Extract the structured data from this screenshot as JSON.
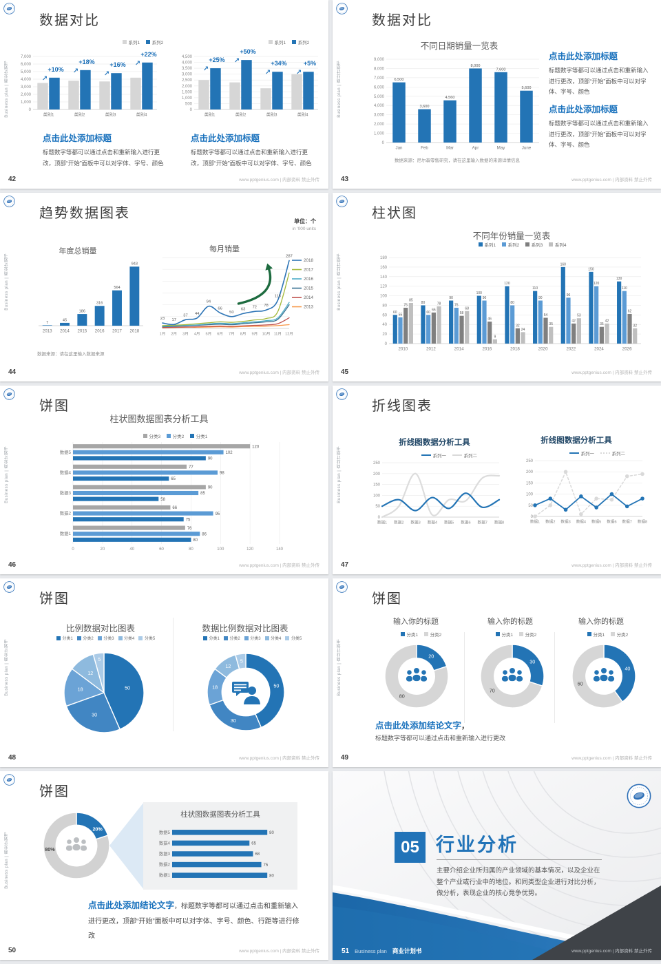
{
  "common": {
    "vertical": "Business plan | 商业计划书",
    "footer": "www.pptgenius.com | 内部资料 禁止外传",
    "click_title": "点击此处添加标题",
    "click_body": "标题数字等都可以通过点击和重新输入进行更改，顶部“开始”面板中可以对字体、字号、颜色"
  },
  "colors": {
    "primary_blue": "#2374b5",
    "light_blue": "#5b9bd5",
    "gray_bar": "#d6d6d6",
    "dark_gray": "#7f7f7f",
    "accent_green_arrow": "#1d6b3f"
  },
  "slides": {
    "s42": {
      "num": "42",
      "title": "数据对比"
    },
    "s43": {
      "num": "43",
      "title": "数据对比",
      "chart_title": "不同日期销量一览表",
      "note": "数据来源：尼尔森零售研究，请在这里输入数据的来源详情信息"
    },
    "s44": {
      "num": "44",
      "title": "趋势数据图表",
      "unit_cn": "单位：个",
      "unit_en": "in '000 units",
      "chart_title_left": "年度总销量",
      "chart_title_right": "每月销量",
      "note": "数据来源：请在这里输入数据来源"
    },
    "s45": {
      "num": "45",
      "title": "柱状图",
      "chart_title": "不同年份销量一览表"
    },
    "s46": {
      "num": "46",
      "title": "饼图",
      "chart_title": "柱状图数据图表分析工具"
    },
    "s47": {
      "num": "47",
      "title": "折线图表",
      "chart_title": "折线图数据分析工具"
    },
    "s48": {
      "num": "48",
      "title": "饼图",
      "chart_title_left": "比例数据对比图表",
      "chart_title_right": "数据比例数据对比图表"
    },
    "s49": {
      "num": "49",
      "title": "饼图",
      "chart_title": "输入你的标题",
      "conclusion_title": "点击此处添加结论文字",
      "conclusion_sep": "，",
      "conclusion_body": "标题数字等都可以通过点击和重新输入进行更改"
    },
    "s50": {
      "num": "50",
      "title": "饼图",
      "panel_title": "柱状图数据图表分析工具",
      "conclusion_title": "点击此处添加结论文字",
      "conclusion_body": "，标题数字等都可以通过点击和重新输入进行更改，顶部“开始”面板中可以对字体、字号、颜色、行距等进行修改"
    },
    "s51": {
      "num": "51",
      "section_no": "05",
      "section_title": "行业分析",
      "body": "主要介绍企业所归属的产业领域的基本情况，以及企业在整个产业或行业中的地位。和同类型企业进行对比分析，做分析，表现企业的核心竞争优势。",
      "footer_brand": "Business plan",
      "footer_doc": "商业计划书"
    }
  },
  "charts": {
    "c42a": {
      "type": "colbars",
      "yMax": 7000,
      "yStep": 1000,
      "yLabels": true,
      "yFmt": true,
      "categories": [
        "类别1",
        "类别2",
        "类别3",
        "类别4"
      ],
      "series": [
        {
          "name": "系列1",
          "color": "#d6d6d6",
          "values": [
            3500,
            3800,
            3700,
            4200
          ]
        },
        {
          "name": "系列2",
          "color": "#2374b5",
          "values": [
            4200,
            5200,
            4800,
            6200
          ]
        }
      ],
      "percents": [
        "+10%",
        "+18%",
        "+16%",
        "+22%"
      ],
      "legend": [
        {
          "label": "系列1",
          "color": "#d6d6d6"
        },
        {
          "label": "系列2",
          "color": "#2374b5"
        }
      ]
    },
    "c42b": {
      "type": "colbars",
      "yMax": 4500,
      "yStep": 500,
      "yLabels": true,
      "yFmt": true,
      "categories": [
        "类别1",
        "类别2",
        "类别3",
        "类别4"
      ],
      "series": [
        {
          "name": "系列1",
          "color": "#d6d6d6",
          "values": [
            2500,
            2300,
            1800,
            3000
          ]
        },
        {
          "name": "系列2",
          "color": "#2374b5",
          "values": [
            3500,
            4200,
            3200,
            3200
          ]
        }
      ],
      "percents": [
        "+25%",
        "+50%",
        "+34%",
        "+5%"
      ],
      "legend": [
        {
          "label": "系列1",
          "color": "#d6d6d6"
        },
        {
          "label": "系列2",
          "color": "#2374b5"
        }
      ]
    },
    "c43": {
      "type": "colbars",
      "yMax": 9000,
      "yStep": 1000,
      "yLabels": true,
      "yFmt": true,
      "barRatio": 0.5,
      "categories": [
        "Jan",
        "Feb",
        "Mar",
        "Apr",
        "May",
        "June"
      ],
      "series": [
        {
          "name": "销量",
          "color": "#2374b5",
          "values": [
            6500,
            3600,
            4560,
            8000,
            7600,
            5600
          ],
          "labels": true,
          "labelFmt": true
        }
      ]
    },
    "c44a": {
      "type": "colbars",
      "yMax": 1000,
      "yStep": 1000,
      "noGrid": true,
      "barRatio": 0.55,
      "categories": [
        "2013",
        "2014",
        "2015",
        "2016",
        "2017",
        "2018"
      ],
      "series": [
        {
          "name": "年度总销量",
          "color": "#2374b5",
          "values": [
            7,
            45,
            186,
            316,
            564,
            943
          ],
          "labels": true
        }
      ]
    },
    "c44b": {
      "type": "lines",
      "yMax": 300,
      "yStep": 50,
      "yLabels": false,
      "legendRight": true,
      "arrow": true,
      "xLabels": [
        "1月",
        "2月",
        "3月",
        "4月",
        "5月",
        "6月",
        "7月",
        "8月",
        "9月",
        "10月",
        "11月",
        "12月"
      ],
      "series": [
        {
          "name": "2018",
          "color": "#2e75b6",
          "w": 1.6,
          "smooth": true,
          "labels": true,
          "values": [
            23,
            17,
            37,
            44,
            94,
            66,
            50,
            63,
            72,
            78,
            118,
            287
          ]
        },
        {
          "name": "2017",
          "color": "#a3b838",
          "w": 1.3,
          "smooth": true,
          "values": [
            12,
            14,
            16,
            20,
            24,
            28,
            26,
            30,
            36,
            42,
            70,
            235
          ]
        },
        {
          "name": "2016",
          "color": "#4bacc6",
          "w": 1.3,
          "smooth": true,
          "values": [
            9,
            11,
            13,
            15,
            19,
            22,
            20,
            24,
            28,
            33,
            44,
            110
          ]
        },
        {
          "name": "2015",
          "color": "#366f91",
          "w": 1.3,
          "smooth": true,
          "values": [
            7,
            9,
            11,
            13,
            16,
            18,
            16,
            20,
            24,
            28,
            38,
            100
          ]
        },
        {
          "name": "2014",
          "color": "#c0504d",
          "w": 1.3,
          "smooth": true,
          "values": [
            4,
            5,
            6,
            7,
            9,
            10,
            9,
            11,
            13,
            15,
            20,
            45
          ]
        },
        {
          "name": "2013",
          "color": "#f79646",
          "w": 1.3,
          "smooth": true,
          "values": [
            3,
            4,
            5,
            5,
            6,
            7,
            6,
            8,
            9,
            10,
            12,
            16
          ]
        }
      ]
    },
    "c45": {
      "type": "colbars",
      "yMax": 180,
      "yStep": 20,
      "yLabels": true,
      "lsz": 5,
      "categories": [
        "2010",
        "2012",
        "2014",
        "2016",
        "2018",
        "2020",
        "2022",
        "2024",
        "2026"
      ],
      "series": [
        {
          "name": "系列1",
          "color": "#2374b5",
          "values": [
            60,
            80,
            90,
            100,
            120,
            110,
            160,
            150,
            130
          ],
          "labels": true
        },
        {
          "name": "系列2",
          "color": "#5b9bd5",
          "values": [
            55,
            60,
            75,
            90,
            80,
            90,
            96,
            120,
            110
          ],
          "labels": true
        },
        {
          "name": "系列3",
          "color": "#7f7f7f",
          "values": [
            75,
            65,
            58,
            46,
            32,
            54,
            42,
            35,
            62
          ],
          "labels": true
        },
        {
          "name": "系列4",
          "color": "#bfbfbf",
          "values": [
            85,
            78,
            68,
            9,
            24,
            35,
            53,
            42,
            32
          ],
          "labels": true
        }
      ],
      "legend": [
        {
          "label": "系列1",
          "color": "#2374b5"
        },
        {
          "label": "系列2",
          "color": "#5b9bd5"
        },
        {
          "label": "系列3",
          "color": "#7f7f7f"
        },
        {
          "label": "系列4",
          "color": "#bfbfbf"
        }
      ]
    },
    "c46": {
      "type": "hbars",
      "xMax": 140,
      "xStep": 20,
      "axis": true,
      "padL": 34,
      "padR": 26,
      "categories": [
        "数据5",
        "数据4",
        "数据3",
        "数据2",
        "数据1"
      ],
      "series": [
        {
          "name": "分类3",
          "color": "#a6a6a6",
          "values": [
            120,
            77,
            90,
            66,
            76
          ]
        },
        {
          "name": "分类2",
          "color": "#5b9bd5",
          "values": [
            102,
            98,
            85,
            95,
            86
          ]
        },
        {
          "name": "分类1",
          "color": "#2374b5",
          "values": [
            90,
            65,
            58,
            75,
            80
          ]
        }
      ],
      "legend": [
        {
          "label": "分类3",
          "color": "#a6a6a6"
        },
        {
          "label": "分类2",
          "color": "#5b9bd5"
        },
        {
          "label": "分类1",
          "color": "#2374b5"
        }
      ]
    },
    "c47a": {
      "type": "lines",
      "yMax": 250,
      "yStep": 50,
      "yLabels": true,
      "xLabels": [
        "数据1",
        "数据2",
        "数据3",
        "数据4",
        "数据5",
        "数据6",
        "数据7",
        "数据8"
      ],
      "series": [
        {
          "name": "系列一",
          "color": "#2374b5",
          "w": 2.2,
          "smooth": true,
          "values": [
            50,
            80,
            30,
            90,
            40,
            110,
            45,
            80
          ]
        },
        {
          "name": "系列二",
          "color": "#dcdcdc",
          "w": 2.2,
          "smooth": true,
          "values": [
            0,
            50,
            200,
            10,
            80,
            75,
            180,
            190
          ]
        }
      ],
      "legend": [
        {
          "label": "系列一",
          "color": "#2374b5",
          "type": "line"
        },
        {
          "label": "系列二",
          "color": "#d9d9d9",
          "type": "line"
        }
      ]
    },
    "c47b": {
      "type": "lines",
      "yMax": 250,
      "yStep": 50,
      "yLabels": true,
      "xLabels": [
        "数据1",
        "数据2",
        "数据3",
        "数据4",
        "数据5",
        "数据6",
        "数据7",
        "数据8"
      ],
      "series": [
        {
          "name": "系列一",
          "color": "#2374b5",
          "w": 1.8,
          "markers": true,
          "values": [
            50,
            80,
            30,
            90,
            40,
            100,
            45,
            80
          ]
        },
        {
          "name": "系列二",
          "color": "#d9d9d9",
          "w": 1.5,
          "dash": true,
          "markers": true,
          "values": [
            0,
            50,
            200,
            10,
            80,
            75,
            180,
            190
          ]
        }
      ],
      "legend": [
        {
          "label": "系列一",
          "color": "#2374b5",
          "type": "line"
        },
        {
          "label": "系列二",
          "color": "#d9d9d9",
          "type": "dash"
        }
      ]
    },
    "c48a": {
      "type": "pie",
      "labels": true,
      "values": [
        50,
        30,
        18,
        12,
        5
      ],
      "colors": [
        "#2374b5",
        "#4186c3",
        "#6ba3d6",
        "#8ebade",
        "#abcbe7"
      ],
      "legend": [
        {
          "label": "分类1",
          "color": "#2374b5"
        },
        {
          "label": "分类2",
          "color": "#4186c3"
        },
        {
          "label": "分类3",
          "color": "#6ba3d6"
        },
        {
          "label": "分类4",
          "color": "#8ebade"
        },
        {
          "label": "分类5",
          "color": "#abcbe7"
        }
      ]
    },
    "c48b": {
      "type": "donut",
      "inner": 0.62,
      "labels": true,
      "icon": "presenter",
      "values": [
        50,
        30,
        18,
        12,
        5
      ],
      "colors": [
        "#2374b5",
        "#4186c3",
        "#6ba3d6",
        "#8ebade",
        "#abcbe7"
      ],
      "legend": [
        {
          "label": "分类1",
          "color": "#2374b5"
        },
        {
          "label": "分类2",
          "color": "#4186c3"
        },
        {
          "label": "分类3",
          "color": "#6ba3d6"
        },
        {
          "label": "分类4",
          "color": "#8ebade"
        },
        {
          "label": "分类5",
          "color": "#abcbe7"
        }
      ]
    },
    "c49a": {
      "type": "donut",
      "inner": 0.57,
      "labels": true,
      "icon": "people",
      "values": [
        20,
        80
      ],
      "colors": [
        "#2374b5",
        "#d6d6d6"
      ],
      "labelColors": [
        "#ffffff",
        "#404040"
      ],
      "legend": [
        {
          "label": "分类1",
          "color": "#2374b5"
        },
        {
          "label": "分类2",
          "color": "#d6d6d6"
        }
      ]
    },
    "c49b": {
      "type": "donut",
      "inner": 0.57,
      "labels": true,
      "icon": "people",
      "values": [
        30,
        70
      ],
      "colors": [
        "#2374b5",
        "#d6d6d6"
      ],
      "labelColors": [
        "#ffffff",
        "#404040"
      ],
      "legend": [
        {
          "label": "分类1",
          "color": "#2374b5"
        },
        {
          "label": "分类2",
          "color": "#d6d6d6"
        }
      ]
    },
    "c49c": {
      "type": "donut",
      "inner": 0.57,
      "labels": true,
      "icon": "people",
      "values": [
        40,
        60
      ],
      "colors": [
        "#2374b5",
        "#d6d6d6"
      ],
      "labelColors": [
        "#ffffff",
        "#404040"
      ],
      "legend": [
        {
          "label": "分类1",
          "color": "#2374b5"
        },
        {
          "label": "分类2",
          "color": "#d6d6d6"
        }
      ]
    },
    "c50a": {
      "type": "donut",
      "inner": 0.62,
      "icon": "peopleGray",
      "boldLabels": true,
      "values": [
        20,
        80
      ],
      "colors": [
        "#2374b5",
        "#d2d2d2"
      ],
      "labelTexts": [
        "20%",
        "80%"
      ],
      "labelColors": [
        "#ffffff",
        "#404040"
      ],
      "labelAngles": [
        52,
        262
      ]
    },
    "c50b": {
      "type": "hbars",
      "xMax": 88,
      "axis": false,
      "padL": 28,
      "padR": 18,
      "bh": 7.5,
      "categories": [
        "数据5",
        "数据4",
        "数据3",
        "数据2",
        "数据1"
      ],
      "series": [
        {
          "name": "数据",
          "color": "#2374b5",
          "values": [
            80,
            65,
            68,
            75,
            80
          ]
        }
      ]
    }
  }
}
